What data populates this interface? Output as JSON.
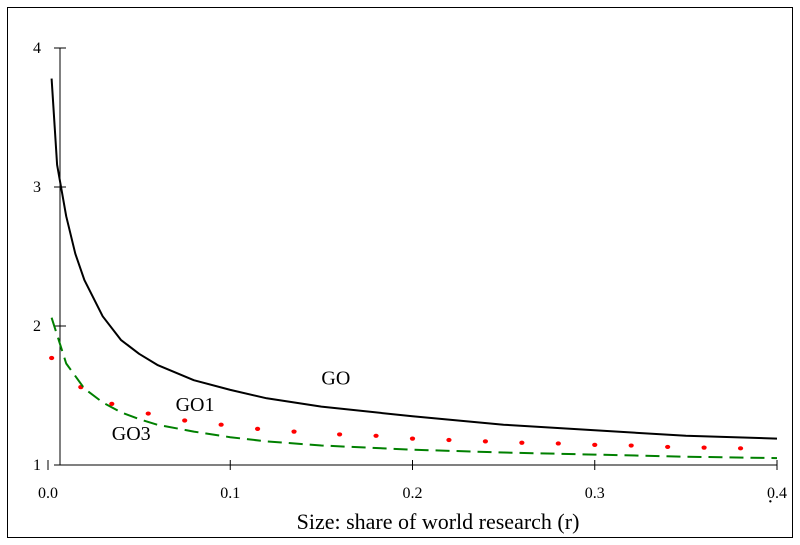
{
  "chart_data": {
    "type": "line",
    "title": "",
    "xlabel": "Size: share of world research (r)",
    "ylabel": "",
    "xlim": [
      0.0,
      0.4
    ],
    "ylim": [
      1,
      4
    ],
    "x_ticks": [
      "0.0",
      "0.1",
      "0.2",
      "0.3",
      "0.4"
    ],
    "y_ticks": [
      "1",
      "2",
      "3",
      "4"
    ],
    "grid": false,
    "legend": "none",
    "series": [
      {
        "name": "GO",
        "style": "solid",
        "color": "#000000",
        "x": [
          0.002,
          0.005,
          0.01,
          0.015,
          0.02,
          0.03,
          0.04,
          0.05,
          0.06,
          0.08,
          0.1,
          0.12,
          0.15,
          0.2,
          0.25,
          0.3,
          0.35,
          0.4
        ],
        "y": [
          3.78,
          3.16,
          2.79,
          2.52,
          2.33,
          2.07,
          1.9,
          1.8,
          1.72,
          1.61,
          1.54,
          1.48,
          1.42,
          1.35,
          1.29,
          1.25,
          1.21,
          1.19
        ]
      },
      {
        "name": "GO1",
        "style": "dotted",
        "color": "#ff0000",
        "x": [
          0.002,
          0.018,
          0.035,
          0.055,
          0.075,
          0.095,
          0.115,
          0.135,
          0.16,
          0.18,
          0.2,
          0.22,
          0.24,
          0.26,
          0.28,
          0.3,
          0.32,
          0.34,
          0.36,
          0.38
        ],
        "y": [
          1.77,
          1.56,
          1.44,
          1.37,
          1.32,
          1.29,
          1.26,
          1.24,
          1.22,
          1.21,
          1.19,
          1.18,
          1.17,
          1.16,
          1.155,
          1.145,
          1.14,
          1.13,
          1.125,
          1.12
        ]
      },
      {
        "name": "GO3",
        "style": "dashed",
        "color": "#008000",
        "x": [
          0.002,
          0.01,
          0.02,
          0.03,
          0.04,
          0.05,
          0.06,
          0.08,
          0.1,
          0.12,
          0.15,
          0.2,
          0.25,
          0.3,
          0.35,
          0.4
        ],
        "y": [
          2.06,
          1.73,
          1.55,
          1.45,
          1.38,
          1.33,
          1.29,
          1.24,
          1.2,
          1.17,
          1.14,
          1.11,
          1.09,
          1.075,
          1.06,
          1.05
        ]
      }
    ],
    "annotations": [
      {
        "text": "GO",
        "x": 0.15,
        "y": 1.58
      },
      {
        "text": "GO1",
        "x": 0.07,
        "y": 1.39
      },
      {
        "text": "GO3",
        "x": 0.035,
        "y": 1.18
      },
      {
        "text": ".",
        "x": 0.395,
        "y": 0.73
      }
    ]
  }
}
